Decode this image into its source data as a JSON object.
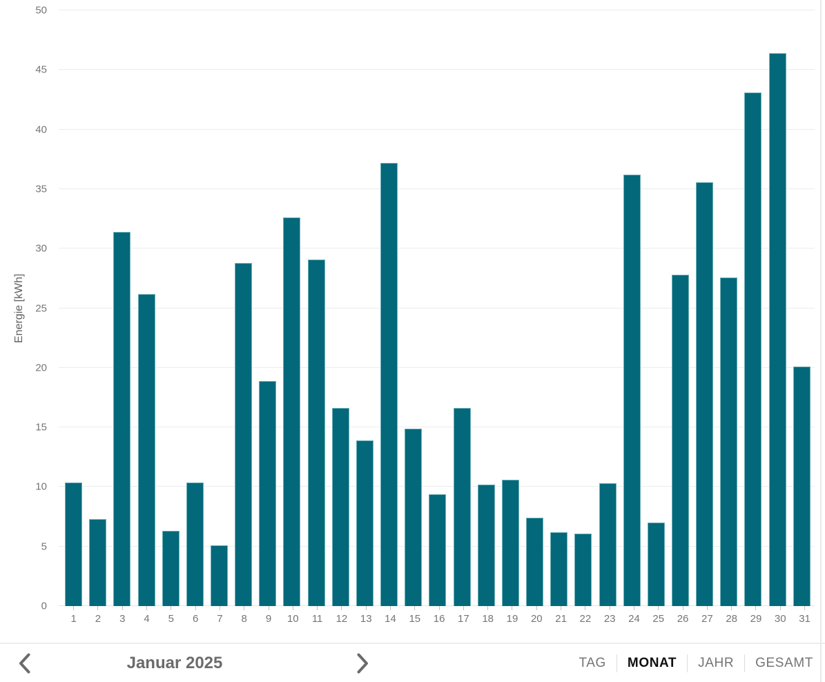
{
  "chart_data": {
    "type": "bar",
    "title": "",
    "xlabel": "",
    "ylabel": "Energie [kWh]",
    "ylim": [
      0,
      50
    ],
    "ytick_step": 5,
    "grid": true,
    "legend": "none",
    "categories": [
      "1",
      "2",
      "3",
      "4",
      "5",
      "6",
      "7",
      "8",
      "9",
      "10",
      "11",
      "12",
      "13",
      "14",
      "15",
      "16",
      "17",
      "18",
      "19",
      "20",
      "21",
      "22",
      "23",
      "24",
      "25",
      "26",
      "27",
      "28",
      "29",
      "30",
      "31"
    ],
    "values": [
      10.4,
      7.3,
      31.4,
      26.2,
      6.3,
      10.4,
      5.1,
      28.8,
      18.9,
      32.6,
      29.1,
      16.6,
      13.9,
      37.2,
      14.9,
      9.4,
      16.6,
      10.2,
      10.6,
      7.4,
      6.2,
      6.1,
      10.3,
      36.2,
      7.0,
      27.8,
      35.6,
      27.6,
      43.1,
      46.4,
      20.1
    ],
    "y_tick_labels": [
      "0",
      "5",
      "10",
      "15",
      "20",
      "25",
      "30",
      "35",
      "40",
      "45",
      "50"
    ]
  },
  "footer": {
    "period_label": "Januar 2025",
    "prev_icon": "chevron-left",
    "next_icon": "chevron-right",
    "tabs": [
      {
        "label": "TAG",
        "active": false
      },
      {
        "label": "MONAT",
        "active": true
      },
      {
        "label": "JAHR",
        "active": false
      },
      {
        "label": "GESAMT",
        "active": false
      }
    ]
  },
  "colors": {
    "bar_fill": "#03697a",
    "bar_border": "#6fb0ba",
    "gridline": "#ececec",
    "axis_text": "#757575",
    "footer_text": "#6b6b6b",
    "active_tab_text": "#111111",
    "divider": "#ececec"
  }
}
